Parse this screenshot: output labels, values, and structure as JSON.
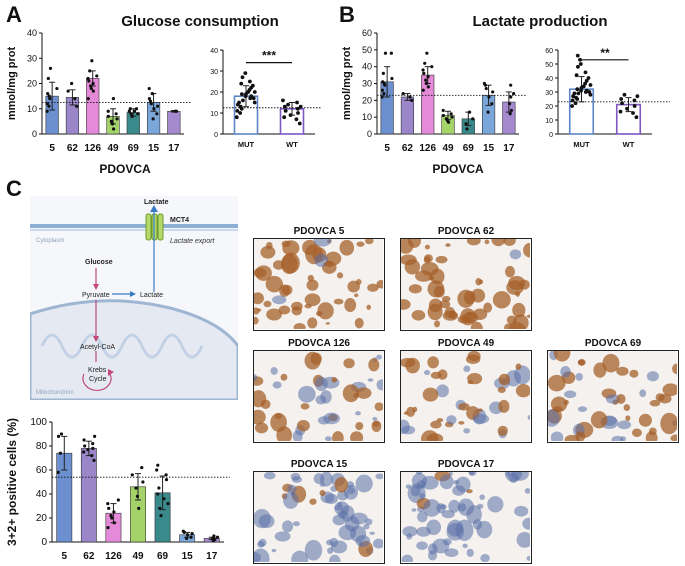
{
  "panels": {
    "a": {
      "letter": "A",
      "title": "Glucose consumption",
      "xlabel": "PDOVCA",
      "ylabel": "mmol/mg prot"
    },
    "b": {
      "letter": "B",
      "title": "Lactate production",
      "xlabel": "PDOVCA",
      "ylabel": "mmol/mg prot"
    },
    "c": {
      "letter": "C",
      "ylabel": "3+2+ positive cells (%)"
    }
  },
  "schematic": {
    "lactate_top": "Lactate",
    "transporter": "MCT4",
    "export": "Lactate export",
    "cytoplasm": "Cytoplasm",
    "glucose": "Glucose",
    "pyruvate": "Pyruvate",
    "lactate": "Lactate",
    "acetyl": "Acetyl-CoA",
    "krebs1": "Krebs",
    "krebs2": "Cycle",
    "mito": "Mitochondrion"
  },
  "micrographs": [
    {
      "label": "PDOVCA 5"
    },
    {
      "label": "PDOVCA 62"
    },
    {
      "label": "PDOVCA 126"
    },
    {
      "label": "PDOVCA 49"
    },
    {
      "label": "PDOVCA 69"
    },
    {
      "label": "PDOVCA 15"
    },
    {
      "label": "PDOVCA 17"
    }
  ],
  "colors": {
    "c5": "#6b8fcf",
    "c62": "#9a86c9",
    "c126": "#e48ad8",
    "c49": "#a4d36a",
    "c69": "#3a8a8c",
    "c15": "#7aa6d9",
    "c17": "#a58ad0",
    "mut_bar": "#5b86c7",
    "wt_bar": "#7e57c2",
    "stain": "#a5602a",
    "hema": "#5a6fa8"
  },
  "chart_data": [
    {
      "type": "bar",
      "id": "glucose_lines",
      "categories": [
        "5",
        "62",
        "126",
        "49",
        "69",
        "15",
        "17"
      ],
      "values": [
        15,
        14.5,
        22,
        7,
        8.5,
        12.5,
        9
      ],
      "errors": [
        5.5,
        3,
        3,
        3,
        1.5,
        3.5,
        0.3
      ],
      "points": [
        [
          9,
          11,
          12,
          14,
          15,
          16,
          18,
          22,
          26
        ],
        [
          11,
          14,
          17,
          20
        ],
        [
          14,
          17,
          18,
          19,
          20,
          21,
          22,
          23,
          25,
          29
        ],
        [
          2,
          4,
          5,
          6,
          7,
          8,
          9,
          14
        ],
        [
          7,
          8,
          8,
          9,
          9,
          10,
          10
        ],
        [
          6,
          8,
          10,
          11,
          12,
          13,
          14,
          16,
          18
        ],
        [
          9,
          9
        ]
      ],
      "reference_line": 12.5,
      "ylim": [
        0,
        40
      ],
      "yticks": [
        0,
        10,
        20,
        30,
        40
      ],
      "ylabel": "mmol/mg prot",
      "xlabel": "PDOVCA",
      "title": "Glucose consumption"
    },
    {
      "type": "bar",
      "id": "glucose_groups",
      "categories": [
        "MUT",
        "WT"
      ],
      "values": [
        18,
        12
      ],
      "errors": [
        5,
        3
      ],
      "points": [
        [
          8,
          10,
          11,
          12,
          13,
          14,
          15,
          15,
          16,
          17,
          17,
          18,
          18,
          19,
          19,
          20,
          20,
          21,
          22,
          23,
          24,
          25,
          27,
          29
        ],
        [
          5,
          7,
          8,
          9,
          10,
          11,
          12,
          13,
          13,
          14,
          15,
          16
        ]
      ],
      "reference_line": 12.5,
      "significance": "***",
      "ylim": [
        0,
        40
      ],
      "yticks": [
        0,
        10,
        20,
        30,
        40
      ]
    },
    {
      "type": "bar",
      "id": "lactate_lines",
      "categories": [
        "5",
        "62",
        "126",
        "49",
        "69",
        "15",
        "17"
      ],
      "values": [
        31,
        22,
        35,
        11,
        9,
        23,
        19
      ],
      "errors": [
        9,
        2,
        5,
        2.5,
        4,
        6,
        6
      ],
      "points": [
        [
          22,
          24,
          26,
          29,
          30,
          31,
          33,
          36,
          48,
          48
        ],
        [
          20,
          22,
          24
        ],
        [
          26,
          28,
          30,
          32,
          34,
          36,
          38,
          40,
          42,
          48
        ],
        [
          7,
          8,
          9,
          10,
          11,
          12,
          14
        ],
        [
          3,
          6,
          9,
          13
        ],
        [
          13,
          18,
          22,
          25,
          27,
          29,
          30
        ],
        [
          12,
          14,
          18,
          22,
          24,
          29
        ]
      ],
      "reference_line": 23,
      "ylim": [
        0,
        60
      ],
      "yticks": [
        0,
        10,
        20,
        30,
        40,
        50,
        60
      ],
      "ylabel": "mmol/mg prot",
      "xlabel": "PDOVCA",
      "title": "Lactate production"
    },
    {
      "type": "bar",
      "id": "lactate_groups",
      "categories": [
        "MUT",
        "WT"
      ],
      "values": [
        32,
        21
      ],
      "errors": [
        9,
        5
      ],
      "points": [
        [
          20,
          22,
          24,
          25,
          26,
          27,
          28,
          29,
          29,
          30,
          30,
          31,
          31,
          32,
          33,
          34,
          35,
          36,
          38,
          40,
          42,
          44,
          48,
          50,
          53,
          56
        ],
        [
          12,
          15,
          16,
          18,
          20,
          22,
          24,
          25,
          27,
          28
        ]
      ],
      "reference_line": 23,
      "significance": "**",
      "ylim": [
        0,
        60
      ],
      "yticks": [
        0,
        10,
        20,
        30,
        40,
        50,
        60
      ]
    },
    {
      "type": "bar",
      "id": "positive_cells",
      "categories": [
        "5",
        "62",
        "126",
        "49",
        "69",
        "15",
        "17"
      ],
      "values": [
        74,
        78,
        24,
        46,
        41,
        6,
        3
      ],
      "errors": [
        14,
        6,
        8,
        11,
        14,
        2,
        1
      ],
      "points": [
        [
          58,
          74,
          88,
          90
        ],
        [
          68,
          72,
          75,
          77,
          78,
          80,
          82,
          85,
          88
        ],
        [
          12,
          16,
          20,
          22,
          25,
          28,
          32,
          35
        ],
        [
          28,
          38,
          45,
          50,
          56,
          62
        ],
        [
          22,
          28,
          32,
          36,
          40,
          45,
          52,
          56,
          60,
          64
        ],
        [
          3,
          4,
          6,
          7,
          8,
          9
        ],
        [
          1,
          2,
          3,
          3,
          4,
          5
        ]
      ],
      "reference_line": 54,
      "ylim": [
        0,
        100
      ],
      "yticks": [
        0,
        20,
        40,
        60,
        80,
        100
      ],
      "ylabel": "3+2+ positive cells (%)"
    }
  ]
}
